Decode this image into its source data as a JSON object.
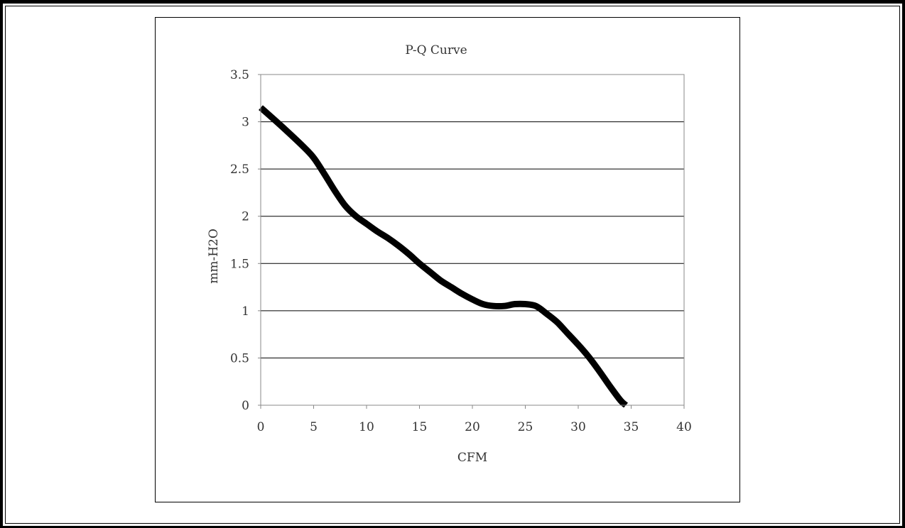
{
  "chart_data": {
    "type": "line",
    "title": "P-Q Curve",
    "xlabel": "CFM",
    "ylabel": "mm-H2O",
    "xlim": [
      0,
      40
    ],
    "ylim": [
      0,
      3.5
    ],
    "x_ticks": [
      "0",
      "5",
      "10",
      "15",
      "20",
      "25",
      "30",
      "35",
      "40"
    ],
    "y_ticks": [
      "0",
      "0.5",
      "1",
      "1.5",
      "2",
      "2.5",
      "3",
      "3.5"
    ],
    "grid": "horizontal",
    "legend": "none",
    "series": [
      {
        "color": "#000000",
        "x": [
          0,
          2,
          4,
          5,
          6,
          7,
          8,
          9,
          10,
          11,
          12,
          13,
          14,
          15,
          16,
          17,
          18,
          19,
          20,
          21,
          22,
          23,
          24,
          25,
          26,
          27,
          28,
          29,
          30,
          31,
          32,
          33,
          34,
          34.5
        ],
        "y": [
          3.15,
          2.95,
          2.74,
          2.62,
          2.45,
          2.27,
          2.11,
          2.0,
          1.92,
          1.84,
          1.77,
          1.69,
          1.6,
          1.5,
          1.41,
          1.32,
          1.25,
          1.18,
          1.12,
          1.07,
          1.05,
          1.05,
          1.07,
          1.07,
          1.05,
          0.97,
          0.88,
          0.76,
          0.64,
          0.51,
          0.36,
          0.2,
          0.05,
          0.0
        ]
      }
    ]
  }
}
